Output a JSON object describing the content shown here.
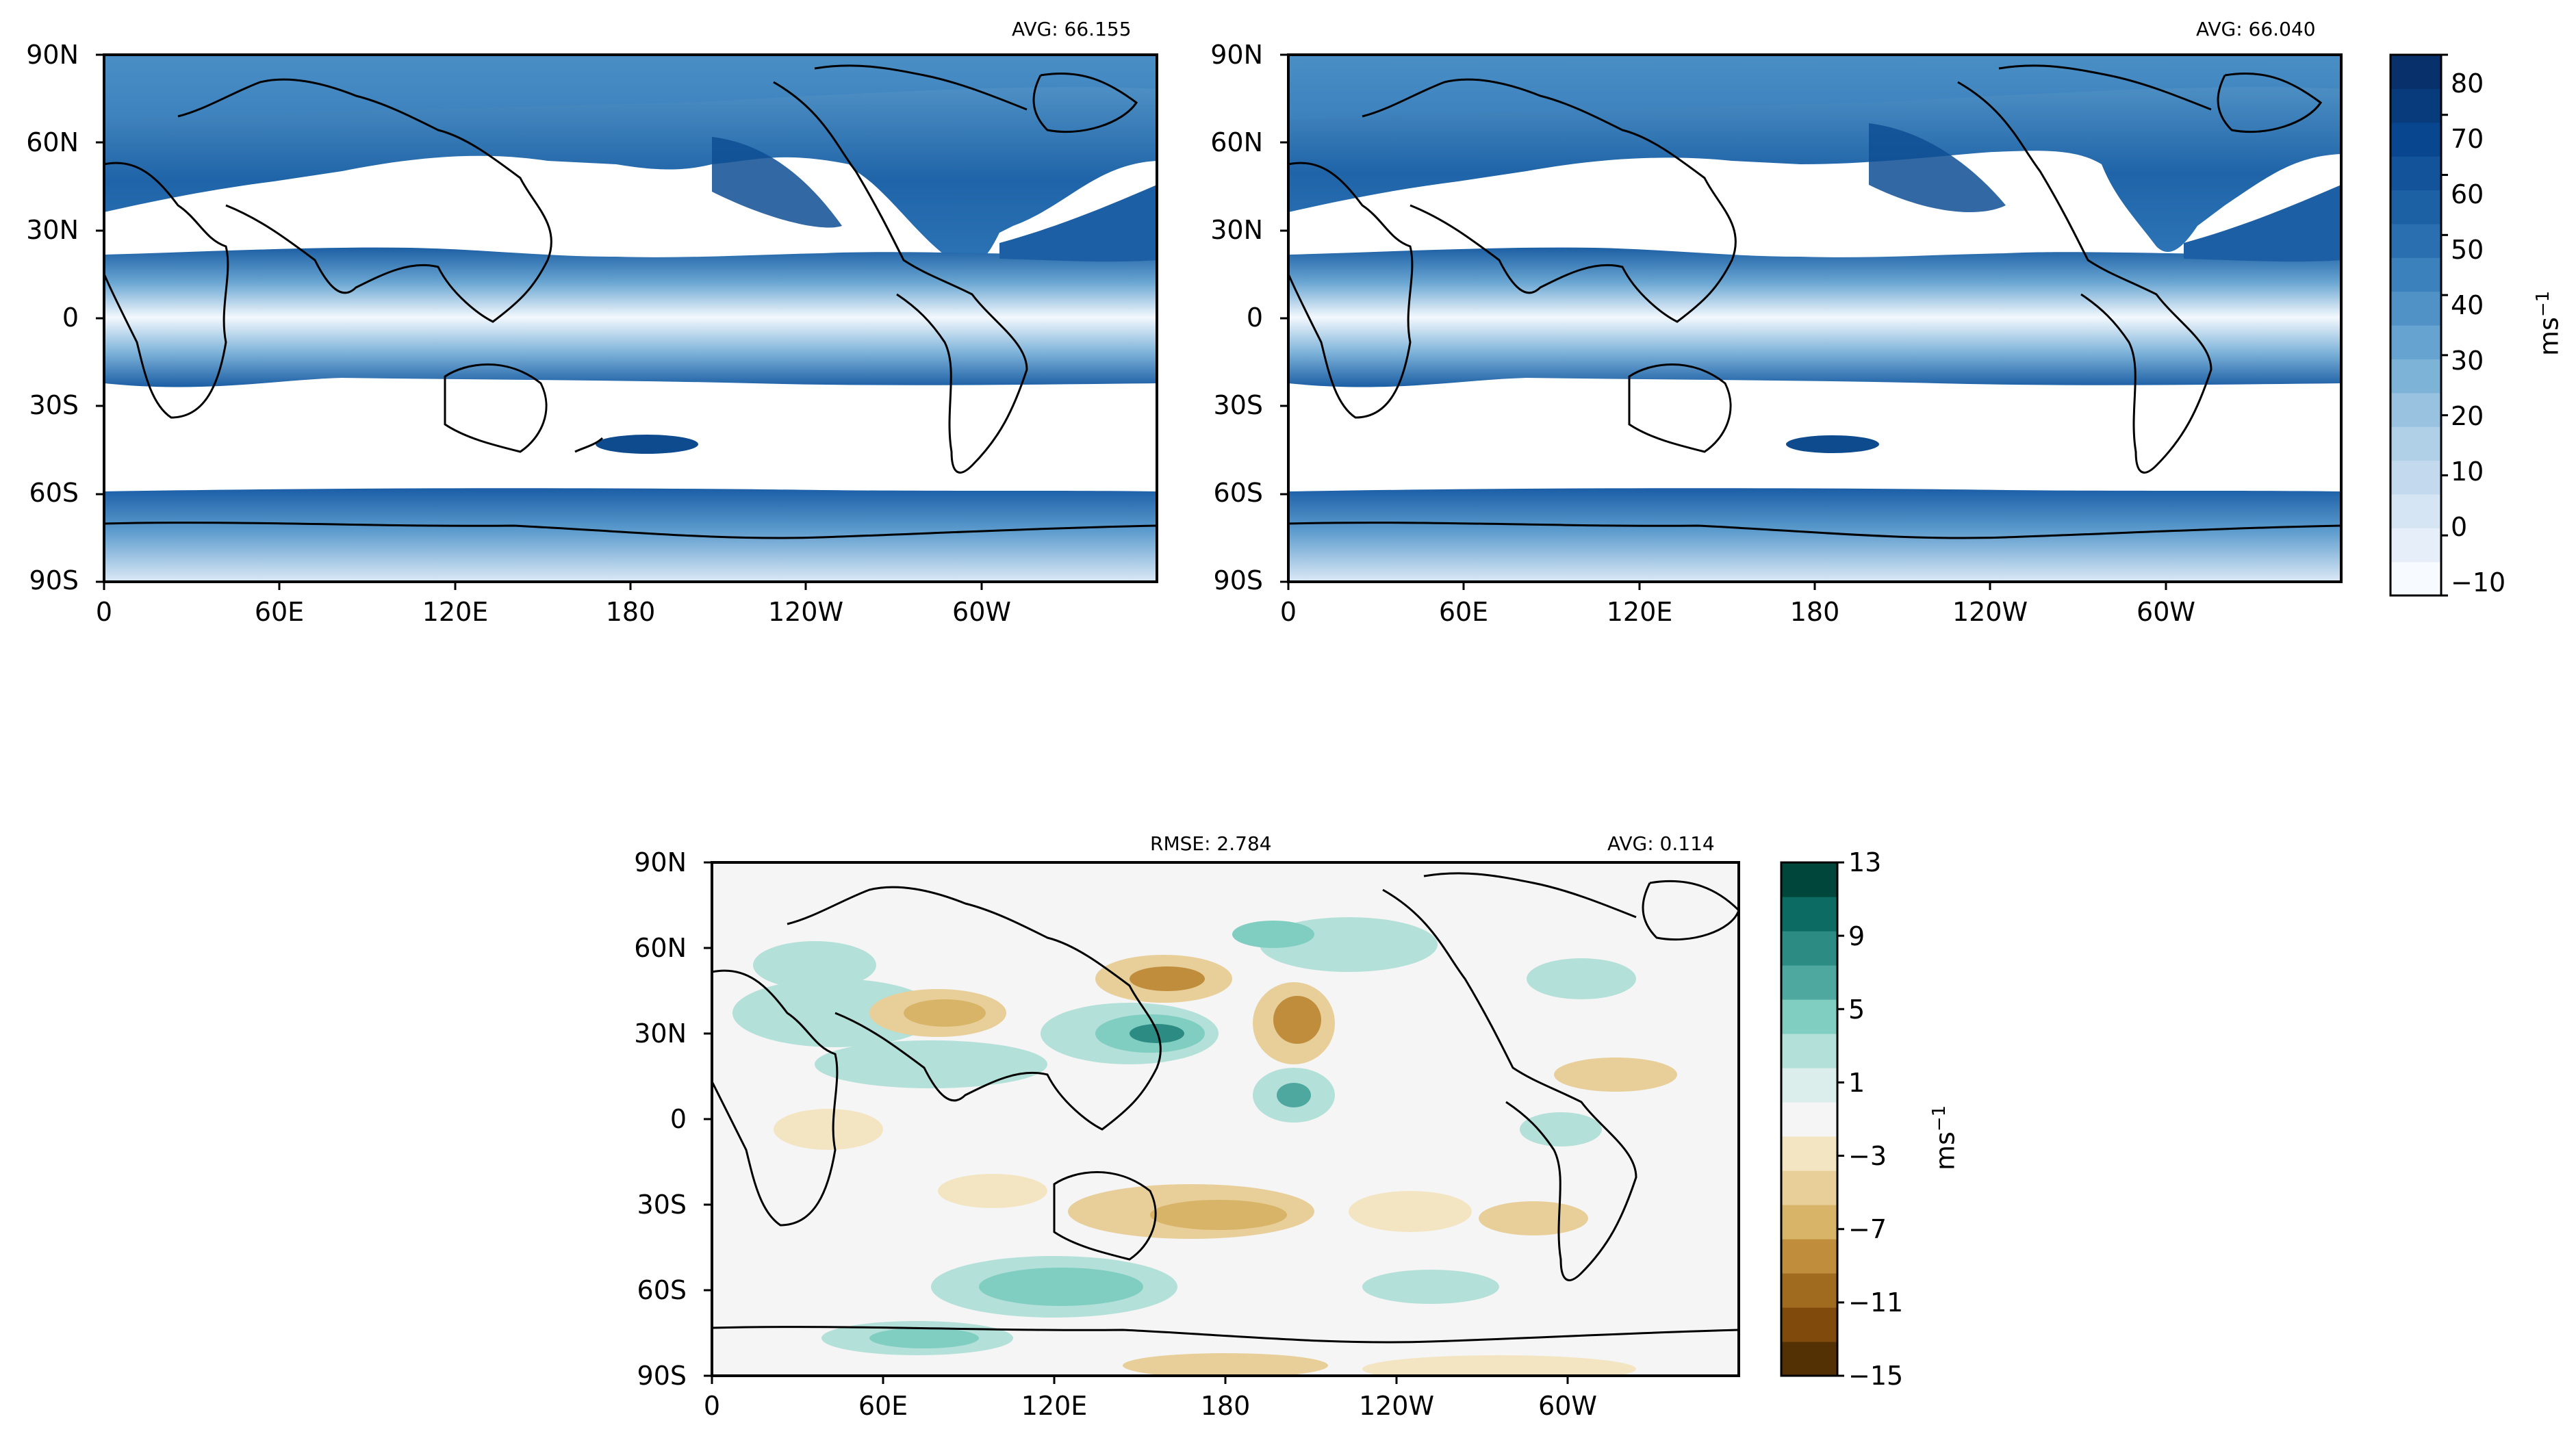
{
  "panels": [
    {
      "id": "top-left",
      "avg": "AVG: 66.155"
    },
    {
      "id": "top-right",
      "avg": "AVG: 66.040"
    },
    {
      "id": "bottom",
      "rmse": "RMSE: 2.784",
      "avg": "AVG: 0.114"
    }
  ],
  "axes": {
    "lat_ticks": [
      "90N",
      "60N",
      "30N",
      "0",
      "30S",
      "60S",
      "90S"
    ],
    "lon_ticks": [
      "0",
      "60E",
      "120E",
      "180",
      "120W",
      "60W"
    ]
  },
  "colorbar_wind": {
    "ticks": [
      "80",
      "70",
      "60",
      "50",
      "40",
      "30",
      "20",
      "10",
      "0",
      "−10"
    ],
    "unit_base": "ms",
    "unit_exp": "−1",
    "colors": [
      "#f7fbff",
      "#e6eff9",
      "#d5e5f4",
      "#c3daee",
      "#afd0e7",
      "#98c2e0",
      "#7eb3d8",
      "#66a3d0",
      "#5092c6",
      "#3b81bc",
      "#2a70b0",
      "#1d61a5",
      "#12539a",
      "#08468f",
      "#083b7b",
      "#08306b"
    ]
  },
  "colorbar_diff": {
    "ticks": [
      "13",
      "9",
      "5",
      "1",
      "−3",
      "−7",
      "−11",
      "−15"
    ],
    "unit_base": "ms",
    "unit_exp": "−1",
    "colors": [
      "#543005",
      "#7f4a0c",
      "#a06a1f",
      "#bf8d3c",
      "#d8b468",
      "#e8cf99",
      "#f4e5c2",
      "#f5f5f5",
      "#dbeeeb",
      "#b3e0d8",
      "#80cdc1",
      "#4ea89f",
      "#2c8b83",
      "#0c6c63",
      "#01463b"
    ]
  }
}
